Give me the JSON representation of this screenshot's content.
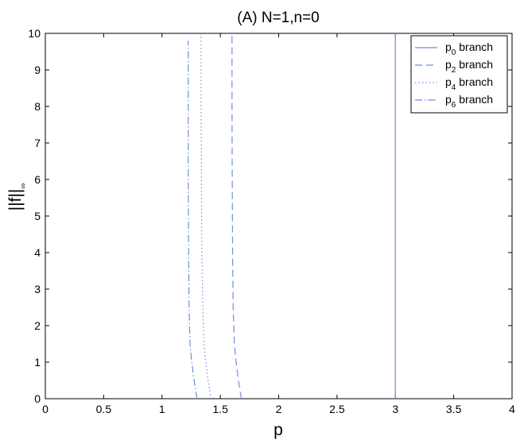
{
  "chart_data": {
    "type": "line",
    "title": "(A) N=1,n=0",
    "xlabel": "p",
    "ylabel": {
      "main": "||f||",
      "sub": "∞"
    },
    "xlim": [
      0,
      4
    ],
    "ylim": [
      0,
      10
    ],
    "xticks": [
      0,
      0.5,
      1,
      1.5,
      2,
      2.5,
      3,
      3.5,
      4
    ],
    "xtick_labels": [
      "0",
      "0.5",
      "1",
      "1.5",
      "2",
      "2.5",
      "3",
      "3.5",
      "4"
    ],
    "yticks": [
      0,
      1,
      2,
      3,
      4,
      5,
      6,
      7,
      8,
      9,
      10
    ],
    "ytick_labels": [
      "0",
      "1",
      "2",
      "3",
      "4",
      "5",
      "6",
      "7",
      "8",
      "9",
      "10"
    ],
    "grid": false,
    "legend_position": "top-right",
    "series": [
      {
        "label_main": "p",
        "label_sub": "0",
        "label_rest": " branch",
        "style": "solid",
        "color": "#6f8ee0",
        "x": [
          3,
          3
        ],
        "y": [
          0,
          10
        ]
      },
      {
        "label_main": "p",
        "label_sub": "2",
        "label_rest": " branch",
        "style": "dashed",
        "color": "#6f8ee0",
        "x": [
          1.68,
          1.655,
          1.635,
          1.62,
          1.61,
          1.605,
          1.602,
          1.6,
          1.6
        ],
        "y": [
          0,
          0.5,
          1,
          1.5,
          2.5,
          4,
          6,
          8,
          10
        ]
      },
      {
        "label_main": "p",
        "label_sub": "4",
        "label_rest": " branch",
        "style": "dotted",
        "color": "#6f8ee0",
        "x": [
          1.42,
          1.395,
          1.375,
          1.36,
          1.35,
          1.342,
          1.338,
          1.335,
          1.335
        ],
        "y": [
          0,
          0.5,
          1,
          1.5,
          2.5,
          4,
          6,
          8,
          10
        ]
      },
      {
        "label_main": "p",
        "label_sub": "6",
        "label_rest": " branch",
        "style": "dashdot",
        "color": "#6f8ee0",
        "x": [
          1.3,
          1.275,
          1.255,
          1.24,
          1.232,
          1.228,
          1.225,
          1.225,
          1.225
        ],
        "y": [
          0,
          0.5,
          1,
          1.5,
          2.5,
          4,
          6,
          8,
          9.8
        ]
      }
    ]
  }
}
